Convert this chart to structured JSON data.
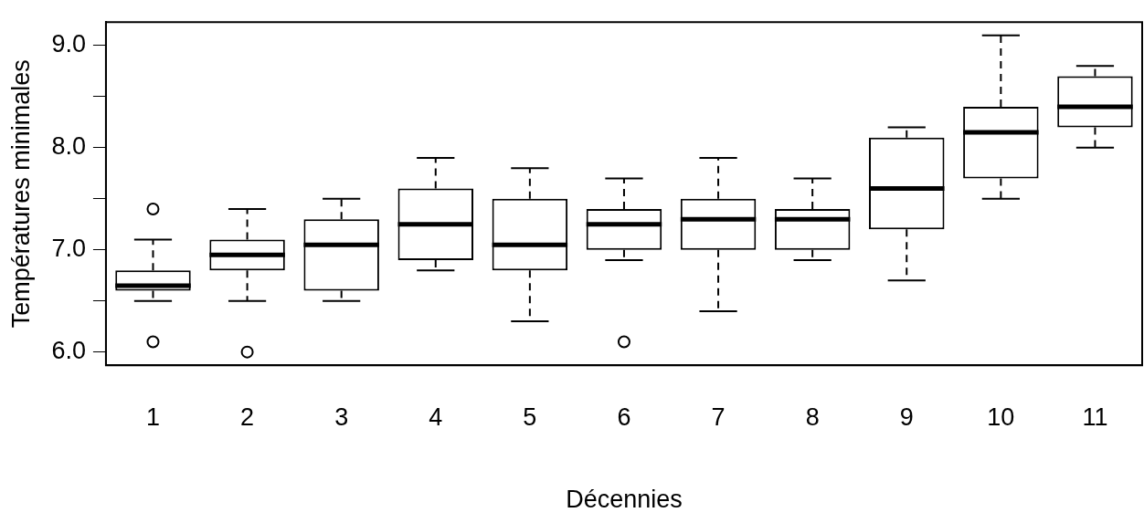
{
  "chart_data": {
    "type": "box",
    "xlabel": "Décennies",
    "ylabel": "Températures minimales",
    "categories": [
      "1",
      "2",
      "3",
      "4",
      "5",
      "6",
      "7",
      "8",
      "9",
      "10",
      "11"
    ],
    "boxes": [
      {
        "low": 6.5,
        "q1": 6.6,
        "median": 6.65,
        "q3": 6.8,
        "high": 7.1,
        "outliers": [
          7.4,
          6.1
        ]
      },
      {
        "low": 6.5,
        "q1": 6.8,
        "median": 6.95,
        "q3": 7.1,
        "high": 7.4,
        "outliers": [
          6.0
        ]
      },
      {
        "low": 6.5,
        "q1": 6.6,
        "median": 7.05,
        "q3": 7.3,
        "high": 7.5
      },
      {
        "low": 6.8,
        "q1": 6.9,
        "median": 7.25,
        "q3": 7.6,
        "high": 7.9
      },
      {
        "low": 6.3,
        "q1": 6.8,
        "median": 7.05,
        "q3": 7.5,
        "high": 7.8
      },
      {
        "low": 6.9,
        "q1": 7.0,
        "median": 7.25,
        "q3": 7.4,
        "high": 7.7,
        "outliers": [
          6.1
        ]
      },
      {
        "low": 6.4,
        "q1": 7.0,
        "median": 7.3,
        "q3": 7.5,
        "high": 7.9
      },
      {
        "low": 6.9,
        "q1": 7.0,
        "median": 7.3,
        "q3": 7.4,
        "high": 7.7
      },
      {
        "low": 6.7,
        "q1": 7.2,
        "median": 7.6,
        "q3": 8.1,
        "high": 8.2
      },
      {
        "low": 7.5,
        "q1": 7.7,
        "median": 8.15,
        "q3": 8.4,
        "high": 9.1
      },
      {
        "low": 8.0,
        "q1": 8.2,
        "median": 8.4,
        "q3": 8.7,
        "high": 8.8
      }
    ],
    "ylim": [
      5.87,
      9.23
    ],
    "yticks": [
      {
        "value": 6.0,
        "label": "6.0"
      },
      {
        "value": 6.5,
        "label": null
      },
      {
        "value": 7.0,
        "label": "7.0"
      },
      {
        "value": 7.5,
        "label": null
      },
      {
        "value": 8.0,
        "label": "8.0"
      },
      {
        "value": 8.5,
        "label": null
      },
      {
        "value": 9.0,
        "label": "9.0"
      }
    ],
    "grid": false,
    "legend": false
  }
}
